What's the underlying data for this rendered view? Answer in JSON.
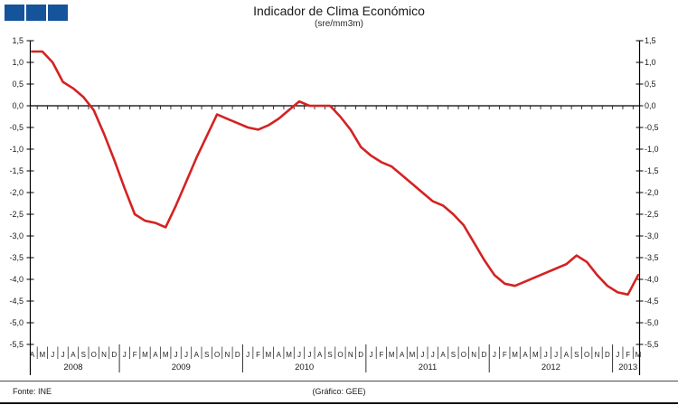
{
  "header": {
    "title": "Indicador de Clima Económico",
    "subtitle": "(sre/mm3m)"
  },
  "logo": {
    "color": "#15539b",
    "squares": 3
  },
  "footer": {
    "source": "Fonte: INE",
    "credit": "(Gráfico: GEE)"
  },
  "chart_data": {
    "type": "line",
    "title": "Indicador de Clima Económico",
    "subtitle": "(sre/mm3m)",
    "xlabel": "",
    "ylabel": "",
    "ylim": [
      -5.5,
      1.5
    ],
    "ytick_step": 0.5,
    "decimal_separator": ",",
    "grid": false,
    "legend": "none",
    "line_color": "#d42222",
    "axis_color": "#000000",
    "groups": [
      {
        "year": "2008",
        "months": [
          "A",
          "M",
          "J",
          "J",
          "A",
          "S",
          "O",
          "N",
          "D"
        ],
        "values": [
          1.25,
          1.25,
          1.0,
          0.55,
          0.4,
          0.2,
          -0.1,
          -0.65,
          -1.25
        ]
      },
      {
        "year": "2009",
        "months": [
          "J",
          "F",
          "M",
          "A",
          "M",
          "J",
          "J",
          "A",
          "S",
          "O",
          "N",
          "D"
        ],
        "values": [
          -1.9,
          -2.5,
          -2.65,
          -2.7,
          -2.8,
          -2.3,
          -1.75,
          -1.2,
          -0.7,
          -0.2,
          -0.3,
          -0.4
        ]
      },
      {
        "year": "2010",
        "months": [
          "J",
          "F",
          "M",
          "A",
          "M",
          "J",
          "J",
          "A",
          "S",
          "O",
          "N",
          "D"
        ],
        "values": [
          -0.5,
          -0.55,
          -0.45,
          -0.3,
          -0.1,
          0.1,
          0.0,
          0.0,
          0.0,
          -0.25,
          -0.55,
          -0.95
        ]
      },
      {
        "year": "2011",
        "months": [
          "J",
          "F",
          "M",
          "A",
          "M",
          "J",
          "J",
          "A",
          "S",
          "O",
          "N",
          "D"
        ],
        "values": [
          -1.15,
          -1.3,
          -1.4,
          -1.6,
          -1.8,
          -2.0,
          -2.2,
          -2.3,
          -2.5,
          -2.75,
          -3.15,
          -3.55
        ]
      },
      {
        "year": "2012",
        "months": [
          "J",
          "F",
          "M",
          "A",
          "M",
          "J",
          "J",
          "A",
          "S",
          "O",
          "N",
          "D"
        ],
        "values": [
          -3.9,
          -4.1,
          -4.15,
          -4.05,
          -3.95,
          -3.85,
          -3.75,
          -3.65,
          -3.45,
          -3.6,
          -3.9,
          -4.15
        ]
      },
      {
        "year": "2013",
        "months": [
          "J",
          "F",
          "M"
        ],
        "values": [
          -4.3,
          -4.35,
          -3.9
        ]
      }
    ]
  }
}
